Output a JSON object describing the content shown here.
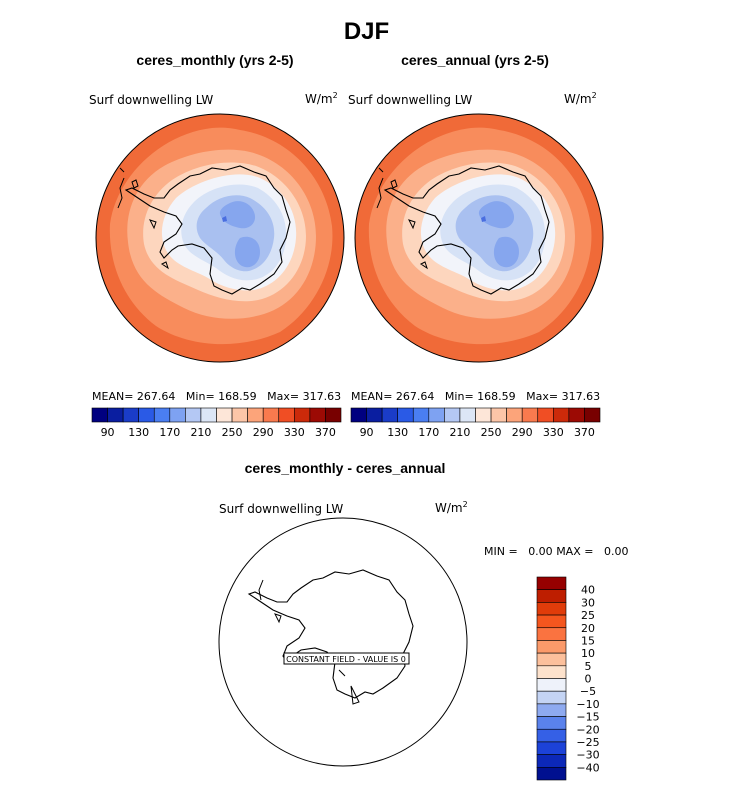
{
  "page_title": "DJF",
  "panels": [
    {
      "title": "ceres_monthly (yrs 2-5)",
      "variable": "Surf downwelling LW",
      "units_base": "W/m",
      "units_exp": "2",
      "stats": {
        "mean_label": "MEAN=",
        "mean": "267.64",
        "min_label": "Min=",
        "min": "168.59",
        "max_label": "Max=",
        "max": "317.63"
      }
    },
    {
      "title": "ceres_annual (yrs 2-5)",
      "variable": "Surf downwelling LW",
      "units_base": "W/m",
      "units_exp": "2",
      "stats": {
        "mean_label": "MEAN=",
        "mean": "267.64",
        "min_label": "Min=",
        "min": "168.59",
        "max_label": "Max=",
        "max": "317.63"
      }
    }
  ],
  "diff_panel": {
    "title": "ceres_monthly - ceres_annual",
    "variable": "Surf downwelling LW",
    "units_base": "W/m",
    "units_exp": "2",
    "min_label": "MIN =",
    "min": "0.00",
    "max_label": "MAX =",
    "max": "0.00",
    "note": "CONSTANT FIELD - VALUE IS 0"
  },
  "chart_data": [
    {
      "type": "heatmap",
      "title": "ceres_monthly (yrs 2-5)",
      "projection": "south polar stereographic",
      "field": "Surf downwelling LW",
      "units": "W/m^2",
      "mean": 267.64,
      "min": 168.59,
      "max": 317.63,
      "colorbar": {
        "levels": [
          90,
          110,
          130,
          150,
          170,
          190,
          210,
          230,
          250,
          270,
          290,
          310,
          330,
          350,
          370
        ],
        "tick_labels": [
          "90",
          "130",
          "170",
          "210",
          "250",
          "290",
          "330",
          "370"
        ],
        "colors": [
          "#000080",
          "#0a1ea0",
          "#1a3cc8",
          "#2a5ae6",
          "#4a7ef2",
          "#7ea2f2",
          "#b4c8f4",
          "#dce6f6",
          "#fde6d8",
          "#fcc6a8",
          "#fca47a",
          "#f97a4e",
          "#f04e24",
          "#cc2a0a",
          "#9c0a04",
          "#780000"
        ]
      }
    },
    {
      "type": "heatmap",
      "title": "ceres_annual (yrs 2-5)",
      "projection": "south polar stereographic",
      "field": "Surf downwelling LW",
      "units": "W/m^2",
      "mean": 267.64,
      "min": 168.59,
      "max": 317.63,
      "colorbar": {
        "levels": [
          90,
          110,
          130,
          150,
          170,
          190,
          210,
          230,
          250,
          270,
          290,
          310,
          330,
          350,
          370
        ],
        "tick_labels": [
          "90",
          "130",
          "170",
          "210",
          "250",
          "290",
          "330",
          "370"
        ],
        "colors": [
          "#000080",
          "#0a1ea0",
          "#1a3cc8",
          "#2a5ae6",
          "#4a7ef2",
          "#7ea2f2",
          "#b4c8f4",
          "#dce6f6",
          "#fde6d8",
          "#fcc6a8",
          "#fca47a",
          "#f97a4e",
          "#f04e24",
          "#cc2a0a",
          "#9c0a04",
          "#780000"
        ]
      }
    },
    {
      "type": "heatmap",
      "title": "ceres_monthly - ceres_annual",
      "projection": "south polar stereographic",
      "field": "Surf downwelling LW",
      "units": "W/m^2",
      "min": 0.0,
      "max": 0.0,
      "constant_value": 0,
      "colorbar": {
        "tick_labels": [
          "40",
          "30",
          "25",
          "20",
          "15",
          "10",
          "5",
          "0",
          "−5",
          "−10",
          "−15",
          "−20",
          "−25",
          "−30",
          "−40"
        ],
        "colors": [
          "#960000",
          "#be1e00",
          "#e03c0a",
          "#f4561e",
          "#fa7340",
          "#fb9a6a",
          "#fcc09c",
          "#fde2cc",
          "#eef2fa",
          "#c4d4f4",
          "#8eaaf0",
          "#5a82ec",
          "#3560e6",
          "#1c42d8",
          "#0c28b8",
          "#001090"
        ]
      }
    }
  ]
}
